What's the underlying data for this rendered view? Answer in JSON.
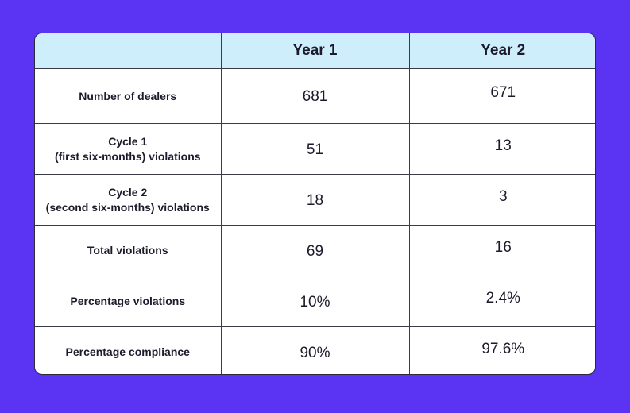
{
  "chart_data": {
    "type": "table",
    "columns": [
      "",
      "Year 1",
      "Year 2"
    ],
    "rows": [
      {
        "label": [
          "Number of dealers"
        ],
        "values": [
          "681",
          "671"
        ]
      },
      {
        "label": [
          "Cycle 1",
          "(first six-months) violations"
        ],
        "values": [
          "51",
          "13"
        ]
      },
      {
        "label": [
          "Cycle 2",
          "(second six-months) violations"
        ],
        "values": [
          "18",
          "3"
        ]
      },
      {
        "label": [
          "Total violations"
        ],
        "values": [
          "69",
          "16"
        ]
      },
      {
        "label": [
          "Percentage violations"
        ],
        "values": [
          "10%",
          "2.4%"
        ]
      },
      {
        "label": [
          "Percentage compliance"
        ],
        "values": [
          "90%",
          "97.6%"
        ]
      }
    ]
  },
  "colors": {
    "background": "#5b33f2",
    "header": "#cdeefa",
    "border": "#3a3a48"
  }
}
